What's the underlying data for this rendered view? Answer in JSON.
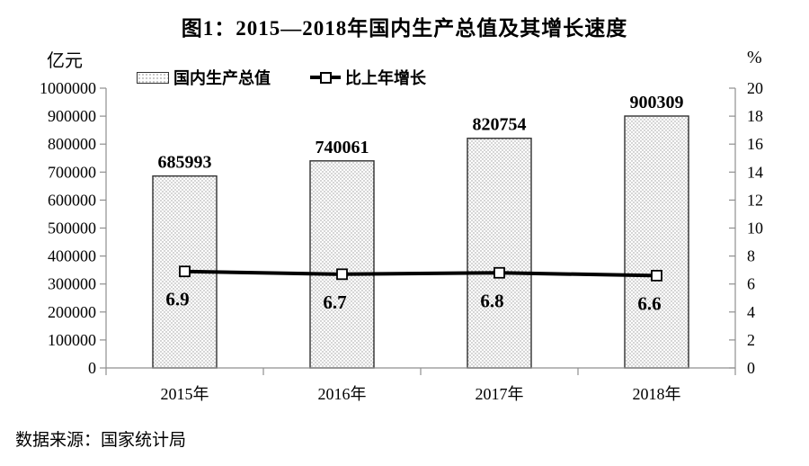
{
  "title": "图1：2015—2018年国内生产总值及其增长速度",
  "source_note": "数据来源：国家统计局",
  "axes": {
    "left_unit": "亿元",
    "right_unit": "%"
  },
  "legend": {
    "items": [
      {
        "label": "国内生产总值",
        "marker": "dotted-bar-swatch"
      },
      {
        "label": "比上年增长",
        "marker": "line-with-square-marker"
      }
    ]
  },
  "colors": {
    "text": "#000000",
    "axis": "#8f8f8f",
    "bar_border": "#2f2f2f",
    "bar_dot": "#9a9a9a",
    "bar_fill": "#fdfdfd",
    "line": "#000000",
    "marker_fill": "#ffffff"
  },
  "chart_data": {
    "type": "bar",
    "subtype": "bar-line-combo",
    "title": "图1：2015—2018年国内生产总值及其增长速度",
    "categories": [
      "2015年",
      "2016年",
      "2017年",
      "2018年"
    ],
    "series": [
      {
        "name": "国内生产总值",
        "type": "bar",
        "axis": "left",
        "unit": "亿元",
        "values": [
          685993,
          740061,
          820754,
          900309
        ]
      },
      {
        "name": "比上年增长",
        "type": "line",
        "axis": "right",
        "unit": "%",
        "values": [
          6.9,
          6.7,
          6.8,
          6.6
        ]
      }
    ],
    "left_axis": {
      "unit": "亿元",
      "min": 0,
      "max": 1000000,
      "step": 100000
    },
    "right_axis": {
      "unit": "%",
      "min": 0,
      "max": 20,
      "step": 2
    },
    "grid": false,
    "legend_position": "top",
    "data_labels": true
  }
}
